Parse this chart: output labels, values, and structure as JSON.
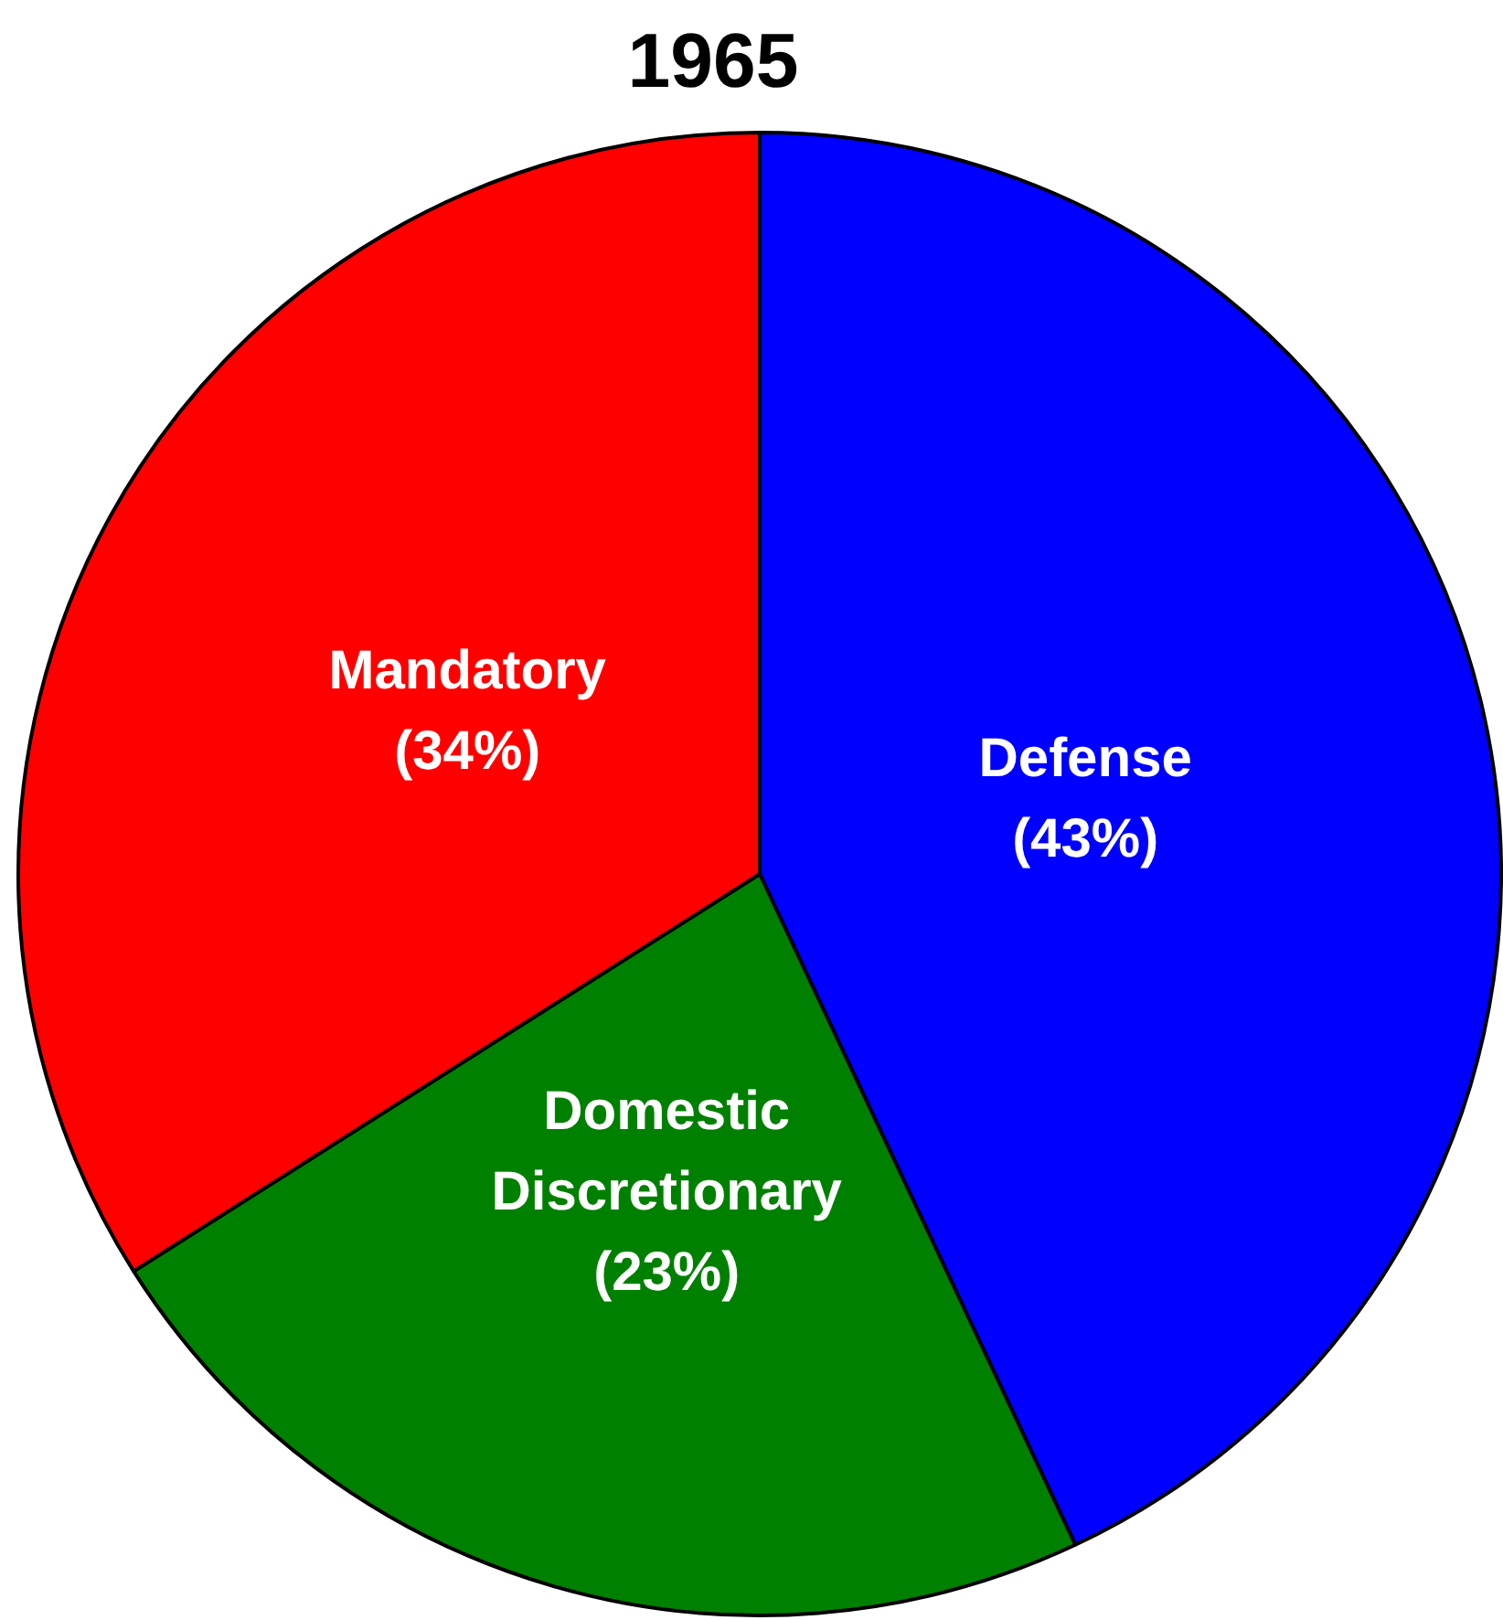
{
  "chart_data": {
    "type": "pie",
    "title": "1965",
    "categories": [
      "Defense",
      "Domestic Discretionary",
      "Mandatory"
    ],
    "values": [
      43,
      23,
      34
    ],
    "colors": [
      "#0000ff",
      "#008000",
      "#ff0000"
    ],
    "value_labels": [
      "(43%)",
      "(23%)",
      "(34%)"
    ],
    "legend": false
  }
}
